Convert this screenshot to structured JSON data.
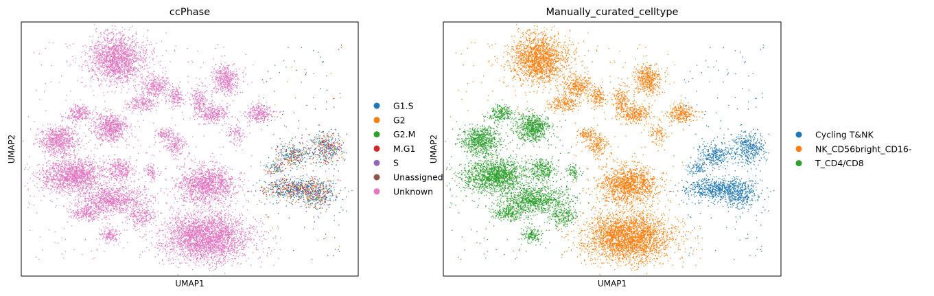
{
  "chart_data": [
    {
      "type": "scatter",
      "title": "ccPhase",
      "xlabel": "UMAP1",
      "ylabel": "UMAP2",
      "grid": false,
      "ticks": false,
      "legend": "right",
      "legend_entries": [
        {
          "label": "G1.S",
          "color": "#1f77b4"
        },
        {
          "label": "G2",
          "color": "#ff7f0e"
        },
        {
          "label": "G2.M",
          "color": "#2ca02c"
        },
        {
          "label": "M.G1",
          "color": "#d62728"
        },
        {
          "label": "S",
          "color": "#9467bd"
        },
        {
          "label": "Unassigned",
          "color": "#8c564b"
        },
        {
          "label": "Unknown",
          "color": "#e377c2"
        }
      ]
    },
    {
      "type": "scatter",
      "title": "Manually_curated_celltype",
      "xlabel": "UMAP1",
      "ylabel": "UMAP2",
      "grid": false,
      "ticks": false,
      "legend": "right",
      "legend_entries": [
        {
          "label": "Cycling T&NK",
          "color": "#1f77b4"
        },
        {
          "label": "NK_CD56bright_CD16-",
          "color": "#ff7f0e"
        },
        {
          "label": "T_CD4/CD8",
          "color": "#2ca02c"
        }
      ]
    }
  ]
}
